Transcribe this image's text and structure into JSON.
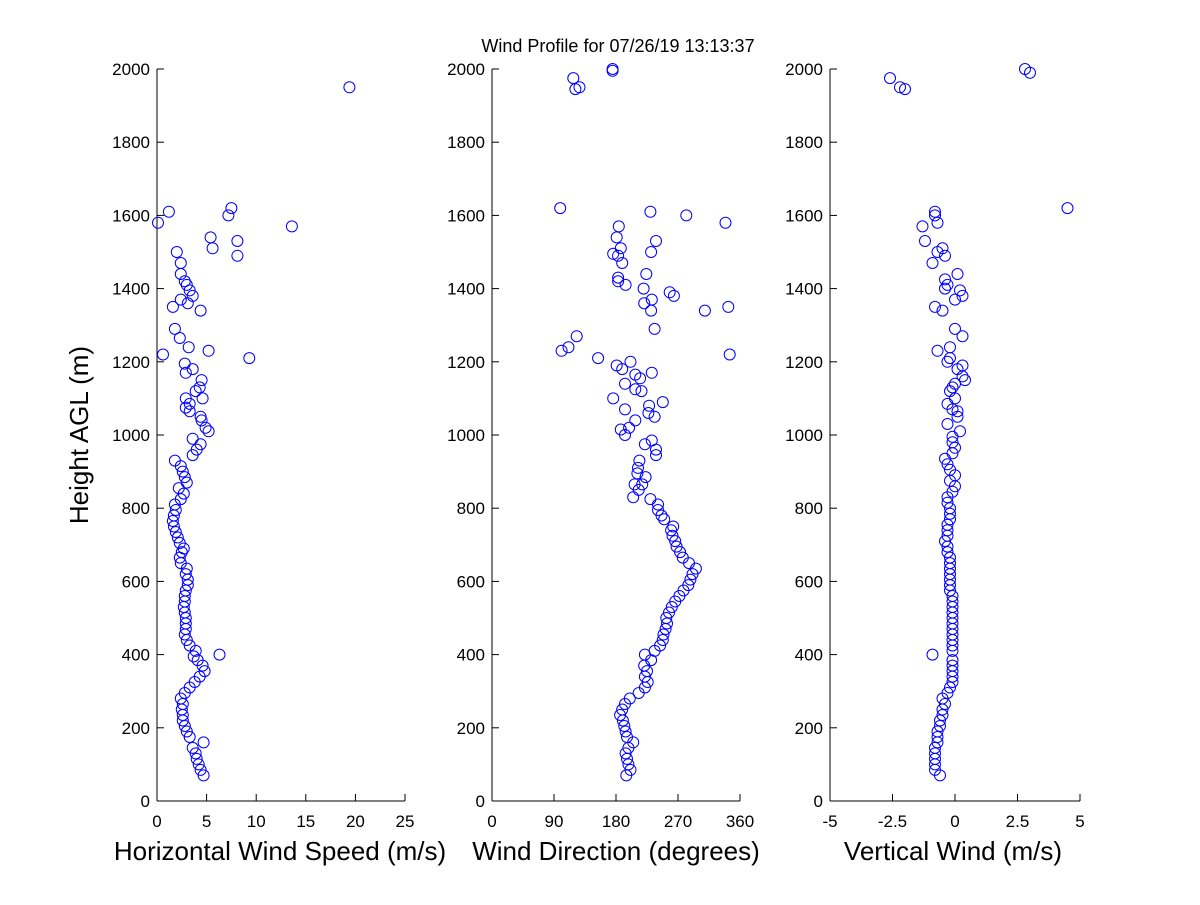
{
  "title": "Wind Profile for  07/26/19 13:13:37",
  "colors": {
    "marker": "#0000ff",
    "axes": "#000000",
    "background": "#ffffff"
  },
  "chart_data": [
    {
      "id": "speed",
      "type": "scatter",
      "title": "",
      "xlabel": "Horizontal Wind Speed (m/s)",
      "ylabel": "Height AGL (m)",
      "xlim": [
        0,
        25
      ],
      "ylim": [
        0,
        2000
      ],
      "xticks": [
        "0",
        "5",
        "10",
        "15",
        "20",
        "25"
      ],
      "xtick_values": [
        0,
        5,
        10,
        15,
        20,
        25
      ],
      "yticks": [
        "0",
        "200",
        "400",
        "600",
        "800",
        "1000",
        "1200",
        "1400",
        "1600",
        "1800",
        "2000"
      ],
      "ytick_values": [
        0,
        200,
        400,
        600,
        800,
        1000,
        1200,
        1400,
        1600,
        1800,
        2000
      ],
      "grid": false,
      "marker": "open-circle",
      "points": [
        [
          4.7,
          70
        ],
        [
          4.4,
          85
        ],
        [
          4.2,
          100
        ],
        [
          4.0,
          115
        ],
        [
          3.9,
          130
        ],
        [
          3.6,
          145
        ],
        [
          4.7,
          160
        ],
        [
          3.3,
          175
        ],
        [
          3.0,
          190
        ],
        [
          2.8,
          205
        ],
        [
          2.6,
          220
        ],
        [
          2.6,
          235
        ],
        [
          2.5,
          250
        ],
        [
          2.6,
          265
        ],
        [
          2.4,
          280
        ],
        [
          2.8,
          295
        ],
        [
          3.3,
          310
        ],
        [
          3.8,
          325
        ],
        [
          4.3,
          340
        ],
        [
          4.8,
          355
        ],
        [
          4.6,
          370
        ],
        [
          4.1,
          385
        ],
        [
          3.7,
          395
        ],
        [
          6.3,
          400
        ],
        [
          3.9,
          410
        ],
        [
          3.3,
          425
        ],
        [
          3.0,
          440
        ],
        [
          2.8,
          455
        ],
        [
          2.9,
          470
        ],
        [
          2.9,
          485
        ],
        [
          2.9,
          500
        ],
        [
          2.8,
          515
        ],
        [
          2.7,
          530
        ],
        [
          2.8,
          545
        ],
        [
          2.8,
          560
        ],
        [
          2.9,
          575
        ],
        [
          3.1,
          590
        ],
        [
          3.1,
          605
        ],
        [
          2.9,
          620
        ],
        [
          3.0,
          635
        ],
        [
          2.4,
          650
        ],
        [
          2.3,
          665
        ],
        [
          2.5,
          680
        ],
        [
          2.7,
          690
        ],
        [
          2.3,
          705
        ],
        [
          2.1,
          720
        ],
        [
          1.9,
          735
        ],
        [
          1.7,
          750
        ],
        [
          1.6,
          765
        ],
        [
          1.7,
          780
        ],
        [
          1.9,
          795
        ],
        [
          1.8,
          810
        ],
        [
          2.4,
          825
        ],
        [
          2.7,
          840
        ],
        [
          2.2,
          855
        ],
        [
          3.0,
          870
        ],
        [
          2.8,
          885
        ],
        [
          2.6,
          900
        ],
        [
          2.4,
          915
        ],
        [
          1.8,
          930
        ],
        [
          3.6,
          945
        ],
        [
          4.0,
          960
        ],
        [
          4.4,
          975
        ],
        [
          3.6,
          990
        ],
        [
          5.2,
          1010
        ],
        [
          4.9,
          1020
        ],
        [
          4.5,
          1040
        ],
        [
          4.4,
          1050
        ],
        [
          3.3,
          1065
        ],
        [
          2.9,
          1075
        ],
        [
          3.3,
          1085
        ],
        [
          2.9,
          1100
        ],
        [
          4.6,
          1100
        ],
        [
          3.9,
          1120
        ],
        [
          4.3,
          1130
        ],
        [
          4.5,
          1150
        ],
        [
          2.9,
          1170
        ],
        [
          3.6,
          1180
        ],
        [
          2.8,
          1195
        ],
        [
          9.3,
          1210
        ],
        [
          0.6,
          1220
        ],
        [
          5.2,
          1230
        ],
        [
          3.2,
          1240
        ],
        [
          2.3,
          1265
        ],
        [
          1.8,
          1290
        ],
        [
          4.4,
          1340
        ],
        [
          1.6,
          1350
        ],
        [
          3.1,
          1360
        ],
        [
          2.4,
          1370
        ],
        [
          3.6,
          1380
        ],
        [
          3.3,
          1395
        ],
        [
          3.0,
          1410
        ],
        [
          2.8,
          1420
        ],
        [
          2.4,
          1440
        ],
        [
          2.4,
          1470
        ],
        [
          2.0,
          1500
        ],
        [
          8.1,
          1490
        ],
        [
          5.6,
          1510
        ],
        [
          8.1,
          1530
        ],
        [
          5.4,
          1540
        ],
        [
          13.6,
          1570
        ],
        [
          0.1,
          1580
        ],
        [
          7.2,
          1600
        ],
        [
          1.2,
          1610
        ],
        [
          7.5,
          1620
        ],
        [
          19.4,
          1950
        ]
      ]
    },
    {
      "id": "direction",
      "type": "scatter",
      "title": "",
      "xlabel": "Wind Direction (degrees)",
      "ylabel": "",
      "xlim": [
        0,
        360
      ],
      "ylim": [
        0,
        2000
      ],
      "xticks": [
        "0",
        "90",
        "180",
        "270",
        "360"
      ],
      "xtick_values": [
        0,
        90,
        180,
        270,
        360
      ],
      "yticks": [
        "0",
        "200",
        "400",
        "600",
        "800",
        "1000",
        "1200",
        "1400",
        "1600",
        "1800",
        "2000"
      ],
      "ytick_values": [
        0,
        200,
        400,
        600,
        800,
        1000,
        1200,
        1400,
        1600,
        1800,
        2000
      ],
      "grid": false,
      "marker": "open-circle",
      "points": [
        [
          195,
          70
        ],
        [
          201,
          85
        ],
        [
          198,
          100
        ],
        [
          196,
          115
        ],
        [
          194,
          130
        ],
        [
          198,
          145
        ],
        [
          205,
          160
        ],
        [
          196,
          175
        ],
        [
          194,
          190
        ],
        [
          192,
          205
        ],
        [
          190,
          220
        ],
        [
          186,
          235
        ],
        [
          189,
          250
        ],
        [
          193,
          265
        ],
        [
          200,
          280
        ],
        [
          213,
          295
        ],
        [
          222,
          310
        ],
        [
          226,
          325
        ],
        [
          222,
          340
        ],
        [
          225,
          355
        ],
        [
          221,
          370
        ],
        [
          231,
          385
        ],
        [
          222,
          400
        ],
        [
          236,
          410
        ],
        [
          244,
          425
        ],
        [
          248,
          440
        ],
        [
          249,
          455
        ],
        [
          252,
          470
        ],
        [
          254,
          485
        ],
        [
          253,
          500
        ],
        [
          257,
          515
        ],
        [
          261,
          530
        ],
        [
          266,
          545
        ],
        [
          272,
          560
        ],
        [
          278,
          575
        ],
        [
          285,
          590
        ],
        [
          288,
          605
        ],
        [
          291,
          620
        ],
        [
          296,
          635
        ],
        [
          286,
          650
        ],
        [
          277,
          665
        ],
        [
          273,
          680
        ],
        [
          268,
          695
        ],
        [
          266,
          710
        ],
        [
          262,
          725
        ],
        [
          260,
          740
        ],
        [
          263,
          750
        ],
        [
          250,
          770
        ],
        [
          246,
          780
        ],
        [
          241,
          795
        ],
        [
          241,
          810
        ],
        [
          230,
          825
        ],
        [
          205,
          830
        ],
        [
          213,
          850
        ],
        [
          218,
          865
        ],
        [
          207,
          865
        ],
        [
          223,
          885
        ],
        [
          211,
          895
        ],
        [
          212,
          910
        ],
        [
          214,
          930
        ],
        [
          238,
          945
        ],
        [
          238,
          960
        ],
        [
          222,
          975
        ],
        [
          232,
          985
        ],
        [
          193,
          1000
        ],
        [
          187,
          1015
        ],
        [
          199,
          1020
        ],
        [
          208,
          1040
        ],
        [
          236,
          1050
        ],
        [
          227,
          1060
        ],
        [
          193,
          1070
        ],
        [
          228,
          1080
        ],
        [
          248,
          1090
        ],
        [
          176,
          1100
        ],
        [
          217,
          1120
        ],
        [
          208,
          1125
        ],
        [
          193,
          1140
        ],
        [
          215,
          1155
        ],
        [
          208,
          1165
        ],
        [
          232,
          1170
        ],
        [
          189,
          1180
        ],
        [
          181,
          1190
        ],
        [
          201,
          1200
        ],
        [
          154,
          1210
        ],
        [
          345,
          1220
        ],
        [
          101,
          1230
        ],
        [
          111,
          1240
        ],
        [
          123,
          1270
        ],
        [
          236,
          1290
        ],
        [
          231,
          1340
        ],
        [
          309,
          1340
        ],
        [
          343,
          1350
        ],
        [
          221,
          1360
        ],
        [
          232,
          1370
        ],
        [
          264,
          1380
        ],
        [
          258,
          1390
        ],
        [
          220,
          1400
        ],
        [
          194,
          1410
        ],
        [
          183,
          1420
        ],
        [
          183,
          1430
        ],
        [
          224,
          1440
        ],
        [
          189,
          1470
        ],
        [
          183,
          1490
        ],
        [
          231,
          1500
        ],
        [
          187,
          1510
        ],
        [
          176,
          1495
        ],
        [
          238,
          1530
        ],
        [
          181,
          1540
        ],
        [
          184,
          1570
        ],
        [
          339,
          1580
        ],
        [
          282,
          1600
        ],
        [
          230,
          1610
        ],
        [
          99,
          1620
        ],
        [
          121,
          1945
        ],
        [
          127,
          1950
        ],
        [
          118,
          1975
        ],
        [
          175,
          1995
        ],
        [
          175,
          2000
        ]
      ]
    },
    {
      "id": "vertical",
      "type": "scatter",
      "title": "",
      "xlabel": "Vertical Wind (m/s)",
      "ylabel": "",
      "xlim": [
        -5,
        5
      ],
      "ylim": [
        0,
        2000
      ],
      "xticks": [
        "-5",
        "-2.5",
        "0",
        "2.5",
        "5"
      ],
      "xtick_values": [
        -5,
        -2.5,
        0,
        2.5,
        5
      ],
      "yticks": [
        "0",
        "200",
        "400",
        "600",
        "800",
        "1000",
        "1200",
        "1400",
        "1600",
        "1800",
        "2000"
      ],
      "ytick_values": [
        0,
        200,
        400,
        600,
        800,
        1000,
        1200,
        1400,
        1600,
        1800,
        2000
      ],
      "grid": false,
      "marker": "open-circle",
      "points": [
        [
          -0.6,
          70
        ],
        [
          -0.8,
          85
        ],
        [
          -0.8,
          100
        ],
        [
          -0.8,
          115
        ],
        [
          -0.8,
          130
        ],
        [
          -0.8,
          145
        ],
        [
          -0.7,
          160
        ],
        [
          -0.7,
          175
        ],
        [
          -0.7,
          190
        ],
        [
          -0.6,
          205
        ],
        [
          -0.6,
          220
        ],
        [
          -0.5,
          235
        ],
        [
          -0.5,
          250
        ],
        [
          -0.4,
          265
        ],
        [
          -0.5,
          280
        ],
        [
          -0.3,
          295
        ],
        [
          -0.2,
          310
        ],
        [
          -0.1,
          325
        ],
        [
          -0.1,
          340
        ],
        [
          -0.1,
          355
        ],
        [
          -0.1,
          370
        ],
        [
          -0.1,
          385
        ],
        [
          -0.9,
          400
        ],
        [
          -0.1,
          410
        ],
        [
          -0.1,
          425
        ],
        [
          -0.1,
          440
        ],
        [
          -0.1,
          455
        ],
        [
          -0.1,
          470
        ],
        [
          -0.1,
          485
        ],
        [
          -0.1,
          500
        ],
        [
          -0.1,
          515
        ],
        [
          -0.1,
          530
        ],
        [
          -0.1,
          545
        ],
        [
          -0.1,
          560
        ],
        [
          -0.2,
          575
        ],
        [
          -0.2,
          590
        ],
        [
          -0.2,
          605
        ],
        [
          -0.2,
          620
        ],
        [
          -0.2,
          635
        ],
        [
          -0.2,
          650
        ],
        [
          -0.2,
          665
        ],
        [
          -0.3,
          680
        ],
        [
          -0.3,
          695
        ],
        [
          -0.4,
          710
        ],
        [
          -0.3,
          725
        ],
        [
          -0.3,
          740
        ],
        [
          -0.3,
          755
        ],
        [
          -0.2,
          770
        ],
        [
          -0.2,
          785
        ],
        [
          -0.2,
          800
        ],
        [
          -0.3,
          815
        ],
        [
          -0.3,
          830
        ],
        [
          -0.1,
          845
        ],
        [
          0.0,
          860
        ],
        [
          -0.2,
          875
        ],
        [
          0.0,
          890
        ],
        [
          -0.2,
          905
        ],
        [
          -0.3,
          920
        ],
        [
          -0.4,
          935
        ],
        [
          -0.1,
          950
        ],
        [
          0.0,
          965
        ],
        [
          -0.1,
          980
        ],
        [
          -0.1,
          995
        ],
        [
          0.2,
          1010
        ],
        [
          -0.3,
          1030
        ],
        [
          0.1,
          1050
        ],
        [
          0.1,
          1065
        ],
        [
          -0.1,
          1070
        ],
        [
          -0.3,
          1085
        ],
        [
          0.0,
          1100
        ],
        [
          -0.2,
          1120
        ],
        [
          -0.1,
          1130
        ],
        [
          0.0,
          1140
        ],
        [
          0.4,
          1150
        ],
        [
          0.3,
          1160
        ],
        [
          0.1,
          1180
        ],
        [
          0.3,
          1190
        ],
        [
          -0.3,
          1200
        ],
        [
          -0.2,
          1210
        ],
        [
          -0.7,
          1230
        ],
        [
          -0.2,
          1240
        ],
        [
          0.3,
          1270
        ],
        [
          0.0,
          1290
        ],
        [
          -0.5,
          1340
        ],
        [
          -0.8,
          1350
        ],
        [
          0.0,
          1370
        ],
        [
          0.3,
          1380
        ],
        [
          0.2,
          1395
        ],
        [
          -0.4,
          1400
        ],
        [
          -0.3,
          1410
        ],
        [
          -0.4,
          1425
        ],
        [
          0.1,
          1440
        ],
        [
          -0.9,
          1470
        ],
        [
          -0.4,
          1490
        ],
        [
          -0.7,
          1500
        ],
        [
          -0.5,
          1510
        ],
        [
          -1.2,
          1530
        ],
        [
          -1.3,
          1570
        ],
        [
          -0.7,
          1580
        ],
        [
          -0.8,
          1600
        ],
        [
          -0.8,
          1610
        ],
        [
          4.5,
          1620
        ],
        [
          -2.0,
          1945
        ],
        [
          -2.2,
          1950
        ],
        [
          -2.6,
          1975
        ],
        [
          3.0,
          1990
        ],
        [
          2.8,
          2000
        ]
      ]
    }
  ]
}
